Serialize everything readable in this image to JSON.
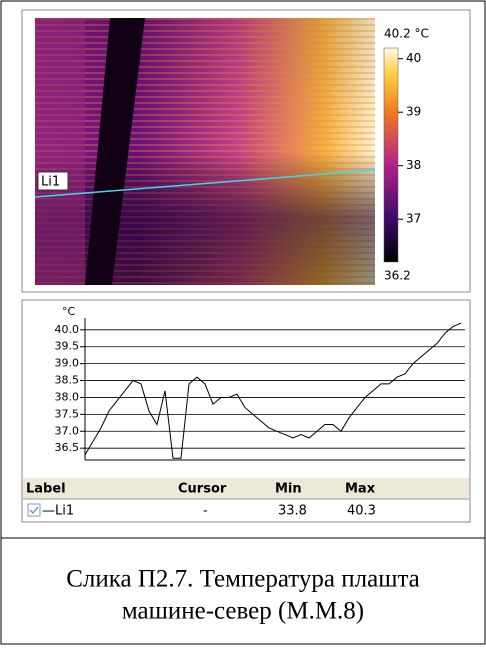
{
  "thermal": {
    "line_label": "Li1",
    "colorbar": {
      "max_label": "40.2 °C",
      "min_label": "36.2",
      "range": [
        36.2,
        40.2
      ],
      "ticks": [
        37,
        38,
        39,
        40
      ]
    }
  },
  "chart_data": {
    "type": "line",
    "y_unit": "°C",
    "color": "#000000",
    "grid": true,
    "values": [
      36.3,
      36.7,
      37.1,
      37.6,
      37.9,
      38.2,
      38.5,
      38.4,
      37.6,
      37.2,
      38.2,
      36.2,
      36.2,
      38.4,
      38.6,
      38.4,
      37.8,
      38.0,
      38.0,
      38.1,
      37.7,
      37.5,
      37.3,
      37.1,
      37.0,
      36.9,
      36.8,
      36.9,
      36.8,
      37.0,
      37.2,
      37.2,
      37.0,
      37.4,
      37.7,
      38.0,
      38.2,
      38.4,
      38.4,
      38.6,
      38.7,
      39.0,
      39.2,
      39.4,
      39.6,
      39.9,
      40.1,
      40.2
    ],
    "ylim": [
      36.15,
      40.35
    ],
    "yticks": [
      36.5,
      {
        "value": 37,
        "label": "37.0"
      },
      37.5,
      {
        "value": 38,
        "label": "38.0"
      },
      38.5,
      {
        "value": 39,
        "label": "39.0"
      },
      39.5,
      {
        "value": 40,
        "label": "40.0"
      }
    ]
  },
  "table": {
    "header": [
      "Label",
      "Cursor",
      "Min",
      "Max"
    ],
    "rows": [
      [
        "—Li1",
        "-",
        "33.8",
        "40.3"
      ]
    ]
  },
  "caption": {
    "lines": [
      "Слика П2.7. Температура плашта",
      "машине-север (М.М.8)"
    ]
  }
}
